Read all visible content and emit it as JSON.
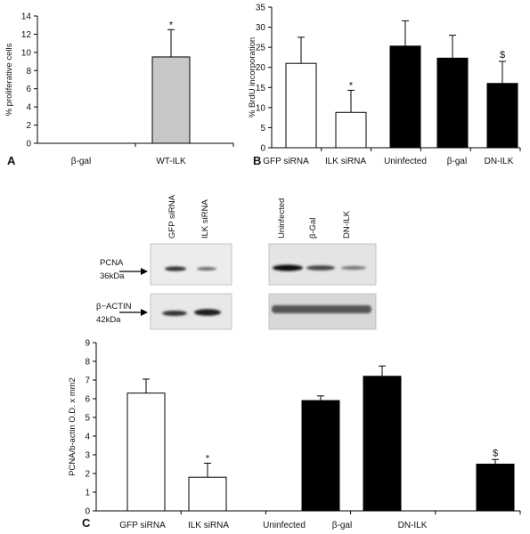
{
  "chart_data": [
    {
      "type": "bar",
      "panel_label": "A",
      "ylabel": "% proliferative cells",
      "ylim": [
        0,
        14
      ],
      "yticks": [
        0,
        2,
        4,
        6,
        8,
        10,
        12,
        14
      ],
      "categories": [
        "β-gal",
        "WT-ILK"
      ],
      "values": [
        0,
        9.5
      ],
      "errors": [
        0,
        3.0
      ],
      "colors": [
        "#c8c8c8",
        "#c8c8c8"
      ],
      "annotations": [
        "",
        "*"
      ]
    },
    {
      "type": "bar",
      "panel_label": "B",
      "ylabel": "% BrdU incorporation",
      "ylim": [
        0,
        35
      ],
      "yticks": [
        0,
        5,
        10,
        15,
        20,
        25,
        30,
        35
      ],
      "categories": [
        "GFP siRNA",
        "ILK siRNA",
        "Uninfected",
        "β-gal",
        "DN-ILK"
      ],
      "values": [
        21,
        8.8,
        25.3,
        22.3,
        16
      ],
      "errors": [
        6.5,
        5.5,
        6.3,
        5.7,
        5.5
      ],
      "colors": [
        "#ffffff",
        "#ffffff",
        "#000000",
        "#000000",
        "#000000"
      ],
      "annotations": [
        "",
        "*",
        "",
        "",
        "$"
      ]
    },
    {
      "type": "bar",
      "panel_label": "C",
      "ylabel": "PCNA/b-actin O.D. x mm2",
      "ylim": [
        0,
        9
      ],
      "yticks": [
        0,
        1,
        2,
        3,
        4,
        5,
        6,
        7,
        8,
        9
      ],
      "categories": [
        "GFP siRNA",
        "ILK siRNA",
        "Uninfected",
        "β-gal",
        "DN-ILK"
      ],
      "values": [
        6.3,
        1.8,
        5.9,
        7.2,
        2.5
      ],
      "errors": [
        0.75,
        0.75,
        0.25,
        0.55,
        0.25
      ],
      "colors": [
        "#ffffff",
        "#ffffff",
        "#000000",
        "#000000",
        "#000000"
      ],
      "annotations": [
        "",
        "*",
        "",
        "",
        "$"
      ]
    }
  ],
  "western_blot": {
    "left_lanes": [
      "GFP siRNA",
      "ILK siRNA"
    ],
    "right_lanes": [
      "Uninfected",
      "β-Gal",
      "DN-ILK"
    ],
    "rows": [
      {
        "protein": "PCNA",
        "size": "36kDa"
      },
      {
        "protein": "β−ACTIN",
        "size": "42kDa"
      }
    ]
  }
}
